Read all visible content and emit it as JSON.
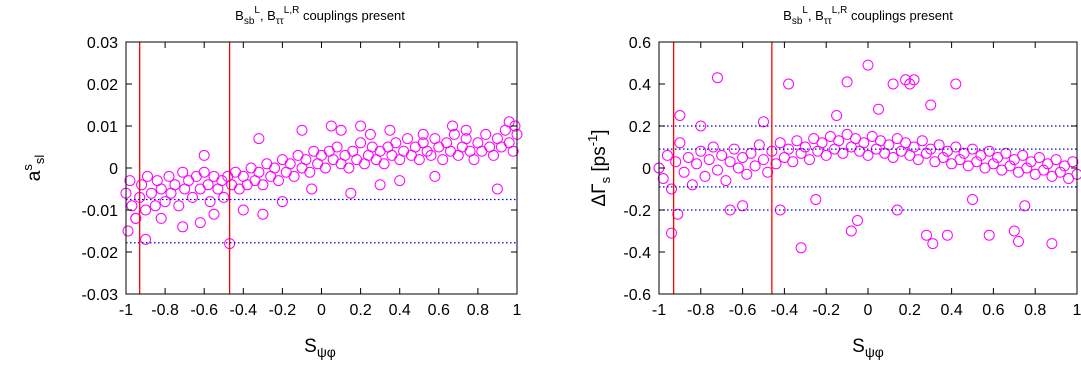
{
  "chart_data": [
    {
      "type": "scatter",
      "title": {
        "main": "B",
        "sub1": "sb",
        "sup1": "L",
        "mid": ", B",
        "sub2": "ττ",
        "sup2": "L,R",
        "tail": " couplings present"
      },
      "xlabel": {
        "main": "S",
        "sub": "ψφ"
      },
      "ylabel": {
        "main": "a",
        "sup": "s",
        "sub": "sl"
      },
      "xlim": [
        -1,
        1
      ],
      "ylim": [
        -0.03,
        0.03
      ],
      "x_ticks": [
        "-1",
        "-0.8",
        "-0.6",
        "-0.4",
        "-0.2",
        "0",
        "0.2",
        "0.4",
        "0.6",
        "0.8",
        "1"
      ],
      "x_tick_values": [
        -1,
        -0.8,
        -0.6,
        -0.4,
        -0.2,
        0,
        0.2,
        0.4,
        0.6,
        0.8,
        1
      ],
      "y_ticks": [
        "-0.03",
        "-0.02",
        "-0.01",
        "0",
        "0.01",
        "0.02",
        "0.03"
      ],
      "y_tick_values": [
        -0.03,
        -0.02,
        -0.01,
        0,
        0.01,
        0.02,
        0.03
      ],
      "vertical_lines_x": [
        -0.93,
        -0.47
      ],
      "horizontal_dotted_y": [
        -0.0075,
        -0.0178
      ],
      "marker_color": "#ff00ff",
      "vline_color": "#ff0000",
      "hline_color": "#0000cc",
      "points": [
        [
          -1.0,
          -0.006
        ],
        [
          -0.98,
          -0.003
        ],
        [
          -0.97,
          -0.009
        ],
        [
          -0.95,
          -0.012
        ],
        [
          -0.93,
          -0.007
        ],
        [
          -0.92,
          -0.004
        ],
        [
          -0.9,
          -0.01
        ],
        [
          -0.89,
          -0.002
        ],
        [
          -0.87,
          -0.006
        ],
        [
          -0.85,
          -0.009
        ],
        [
          -0.84,
          -0.003
        ],
        [
          -0.82,
          -0.005
        ],
        [
          -0.8,
          -0.008
        ],
        [
          -0.78,
          -0.002
        ],
        [
          -0.77,
          -0.006
        ],
        [
          -0.75,
          -0.004
        ],
        [
          -0.73,
          -0.009
        ],
        [
          -0.71,
          -0.001
        ],
        [
          -0.7,
          -0.005
        ],
        [
          -0.68,
          -0.003
        ],
        [
          -0.66,
          -0.007
        ],
        [
          -0.64,
          -0.002
        ],
        [
          -0.62,
          -0.005
        ],
        [
          -0.6,
          -0.001
        ],
        [
          -0.58,
          -0.004
        ],
        [
          -0.57,
          -0.008
        ],
        [
          -0.55,
          -0.002
        ],
        [
          -0.53,
          -0.005
        ],
        [
          -0.51,
          -0.003
        ],
        [
          -0.5,
          -0.007
        ],
        [
          -0.48,
          -0.002
        ],
        [
          -0.46,
          -0.004
        ],
        [
          -0.44,
          -0.001
        ],
        [
          -0.42,
          -0.005
        ],
        [
          -0.4,
          -0.002
        ],
        [
          -0.38,
          -0.004
        ],
        [
          -0.36,
          0.0
        ],
        [
          -0.34,
          -0.003
        ],
        [
          -0.32,
          -0.001
        ],
        [
          -0.3,
          -0.004
        ],
        [
          -0.28,
          0.001
        ],
        [
          -0.26,
          -0.002
        ],
        [
          -0.24,
          0.0
        ],
        [
          -0.22,
          -0.003
        ],
        [
          -0.2,
          0.002
        ],
        [
          -0.18,
          -0.001
        ],
        [
          -0.16,
          0.001
        ],
        [
          -0.14,
          -0.002
        ],
        [
          -0.12,
          0.003
        ],
        [
          -0.1,
          0.0
        ],
        [
          -0.08,
          0.002
        ],
        [
          -0.06,
          -0.001
        ],
        [
          -0.04,
          0.004
        ],
        [
          -0.02,
          0.001
        ],
        [
          0.0,
          0.003
        ],
        [
          0.02,
          0.0
        ],
        [
          0.04,
          0.004
        ],
        [
          0.06,
          0.002
        ],
        [
          0.08,
          0.005
        ],
        [
          0.1,
          0.001
        ],
        [
          0.12,
          0.003
        ],
        [
          0.14,
          0.0
        ],
        [
          0.16,
          0.004
        ],
        [
          0.18,
          0.002
        ],
        [
          0.2,
          0.006
        ],
        [
          0.22,
          0.001
        ],
        [
          0.24,
          0.003
        ],
        [
          0.26,
          0.005
        ],
        [
          0.28,
          0.002
        ],
        [
          0.3,
          0.004
        ],
        [
          0.32,
          0.001
        ],
        [
          0.34,
          0.005
        ],
        [
          0.36,
          0.003
        ],
        [
          0.38,
          0.006
        ],
        [
          0.4,
          0.002
        ],
        [
          0.42,
          0.004
        ],
        [
          0.44,
          0.007
        ],
        [
          0.46,
          0.003
        ],
        [
          0.48,
          0.005
        ],
        [
          0.5,
          0.002
        ],
        [
          0.52,
          0.006
        ],
        [
          0.54,
          0.004
        ],
        [
          0.56,
          0.003
        ],
        [
          0.58,
          0.007
        ],
        [
          0.6,
          0.005
        ],
        [
          0.62,
          0.002
        ],
        [
          0.64,
          0.006
        ],
        [
          0.66,
          0.004
        ],
        [
          0.68,
          0.008
        ],
        [
          0.7,
          0.003
        ],
        [
          0.72,
          0.005
        ],
        [
          0.74,
          0.007
        ],
        [
          0.76,
          0.004
        ],
        [
          0.78,
          0.002
        ],
        [
          0.8,
          0.006
        ],
        [
          0.82,
          0.004
        ],
        [
          0.84,
          0.008
        ],
        [
          0.86,
          0.005
        ],
        [
          0.88,
          0.003
        ],
        [
          0.9,
          0.007
        ],
        [
          0.92,
          0.005
        ],
        [
          0.94,
          0.009
        ],
        [
          0.96,
          0.006
        ],
        [
          0.98,
          0.004
        ],
        [
          1.0,
          0.008
        ],
        [
          -0.99,
          -0.015
        ],
        [
          -0.9,
          -0.017
        ],
        [
          -0.71,
          -0.014
        ],
        [
          -0.47,
          -0.018
        ],
        [
          -0.62,
          -0.013
        ],
        [
          -0.3,
          -0.011
        ],
        [
          -0.95,
          -0.012
        ],
        [
          0.9,
          -0.005
        ],
        [
          -0.1,
          0.009
        ],
        [
          0.05,
          0.01
        ],
        [
          0.1,
          0.009
        ],
        [
          0.2,
          0.01
        ],
        [
          0.52,
          0.008
        ],
        [
          0.67,
          0.01
        ],
        [
          0.74,
          0.009
        ],
        [
          0.96,
          0.011
        ],
        [
          0.99,
          0.01
        ],
        [
          -0.32,
          0.007
        ],
        [
          -0.6,
          0.003
        ],
        [
          0.15,
          -0.006
        ],
        [
          0.3,
          -0.004
        ],
        [
          -0.2,
          -0.008
        ],
        [
          -0.55,
          -0.011
        ],
        [
          -0.4,
          -0.01
        ],
        [
          -0.82,
          -0.012
        ],
        [
          0.4,
          -0.003
        ],
        [
          0.58,
          -0.002
        ],
        [
          -0.05,
          -0.005
        ],
        [
          0.35,
          0.009
        ],
        [
          0.25,
          0.008
        ]
      ]
    },
    {
      "type": "scatter",
      "title": {
        "main": "B",
        "sub1": "sb",
        "sup1": "L",
        "mid": ", B",
        "sub2": "ττ",
        "sup2": "L,R",
        "tail": " couplings present"
      },
      "xlabel": {
        "main": "S",
        "sub": "ψφ"
      },
      "ylabel": {
        "main": "ΔΓ",
        "sub": "s",
        "unit_open": " [ps",
        "unit_sup": "-1",
        "unit_close": "]"
      },
      "xlim": [
        -1,
        1
      ],
      "ylim": [
        -0.6,
        0.6
      ],
      "x_ticks": [
        "-1",
        "-0.8",
        "-0.6",
        "-0.4",
        "-0.2",
        "0",
        "0.2",
        "0.4",
        "0.6",
        "0.8",
        "1"
      ],
      "x_tick_values": [
        -1,
        -0.8,
        -0.6,
        -0.4,
        -0.2,
        0,
        0.2,
        0.4,
        0.6,
        0.8,
        1
      ],
      "y_ticks": [
        "-0.6",
        "-0.4",
        "-0.2",
        "0",
        "0.2",
        "0.4",
        "0.6"
      ],
      "y_tick_values": [
        -0.6,
        -0.4,
        -0.2,
        0,
        0.2,
        0.4,
        0.6
      ],
      "vertical_lines_x": [
        -0.93,
        -0.46
      ],
      "horizontal_dotted_y": [
        0.2,
        0.09,
        -0.09,
        -0.2
      ],
      "marker_color": "#ff00ff",
      "vline_color": "#ff0000",
      "hline_color": "#0000cc",
      "points": [
        [
          -1.0,
          0.0
        ],
        [
          -0.98,
          -0.05
        ],
        [
          -0.96,
          0.06
        ],
        [
          -0.94,
          -0.1
        ],
        [
          -0.92,
          0.03
        ],
        [
          -0.9,
          0.12
        ],
        [
          -0.88,
          -0.02
        ],
        [
          -0.86,
          0.05
        ],
        [
          -0.84,
          -0.08
        ],
        [
          -0.82,
          0.02
        ],
        [
          -0.8,
          0.08
        ],
        [
          -0.78,
          -0.04
        ],
        [
          -0.76,
          0.04
        ],
        [
          -0.74,
          0.1
        ],
        [
          -0.72,
          -0.01
        ],
        [
          -0.7,
          0.06
        ],
        [
          -0.68,
          -0.06
        ],
        [
          -0.66,
          0.03
        ],
        [
          -0.64,
          0.09
        ],
        [
          -0.62,
          0.0
        ],
        [
          -0.6,
          0.05
        ],
        [
          -0.58,
          -0.03
        ],
        [
          -0.56,
          0.07
        ],
        [
          -0.54,
          0.01
        ],
        [
          -0.52,
          0.11
        ],
        [
          -0.5,
          0.04
        ],
        [
          -0.48,
          -0.02
        ],
        [
          -0.46,
          0.08
        ],
        [
          -0.44,
          0.02
        ],
        [
          -0.42,
          0.12
        ],
        [
          -0.4,
          0.05
        ],
        [
          -0.38,
          0.09
        ],
        [
          -0.36,
          0.03
        ],
        [
          -0.34,
          0.13
        ],
        [
          -0.32,
          0.07
        ],
        [
          -0.3,
          0.1
        ],
        [
          -0.28,
          0.04
        ],
        [
          -0.26,
          0.14
        ],
        [
          -0.24,
          0.08
        ],
        [
          -0.22,
          0.12
        ],
        [
          -0.2,
          0.06
        ],
        [
          -0.18,
          0.15
        ],
        [
          -0.16,
          0.09
        ],
        [
          -0.14,
          0.13
        ],
        [
          -0.12,
          0.07
        ],
        [
          -0.1,
          0.16
        ],
        [
          -0.08,
          0.1
        ],
        [
          -0.06,
          0.14
        ],
        [
          -0.04,
          0.08
        ],
        [
          -0.02,
          0.12
        ],
        [
          0.0,
          0.06
        ],
        [
          0.02,
          0.15
        ],
        [
          0.04,
          0.09
        ],
        [
          0.06,
          0.13
        ],
        [
          0.08,
          0.07
        ],
        [
          0.1,
          0.11
        ],
        [
          0.12,
          0.05
        ],
        [
          0.14,
          0.14
        ],
        [
          0.16,
          0.08
        ],
        [
          0.18,
          0.12
        ],
        [
          0.2,
          0.06
        ],
        [
          0.22,
          0.1
        ],
        [
          0.24,
          0.04
        ],
        [
          0.26,
          0.13
        ],
        [
          0.28,
          0.07
        ],
        [
          0.3,
          0.09
        ],
        [
          0.32,
          0.03
        ],
        [
          0.34,
          0.11
        ],
        [
          0.36,
          0.05
        ],
        [
          0.38,
          0.08
        ],
        [
          0.4,
          0.02
        ],
        [
          0.42,
          0.1
        ],
        [
          0.44,
          0.04
        ],
        [
          0.46,
          0.07
        ],
        [
          0.48,
          0.01
        ],
        [
          0.5,
          0.09
        ],
        [
          0.52,
          0.03
        ],
        [
          0.54,
          0.06
        ],
        [
          0.56,
          0.0
        ],
        [
          0.58,
          0.08
        ],
        [
          0.6,
          0.02
        ],
        [
          0.62,
          0.05
        ],
        [
          0.64,
          -0.01
        ],
        [
          0.66,
          0.07
        ],
        [
          0.68,
          0.01
        ],
        [
          0.7,
          0.04
        ],
        [
          0.72,
          -0.02
        ],
        [
          0.74,
          0.06
        ],
        [
          0.76,
          0.0
        ],
        [
          0.78,
          0.03
        ],
        [
          0.8,
          -0.03
        ],
        [
          0.82,
          0.05
        ],
        [
          0.84,
          -0.01
        ],
        [
          0.86,
          0.02
        ],
        [
          0.88,
          -0.04
        ],
        [
          0.9,
          0.04
        ],
        [
          0.92,
          -0.02
        ],
        [
          0.94,
          0.01
        ],
        [
          0.96,
          -0.05
        ],
        [
          0.98,
          0.03
        ],
        [
          1.0,
          -0.03
        ],
        [
          -0.72,
          0.43
        ],
        [
          -0.94,
          -0.31
        ],
        [
          -0.9,
          0.25
        ],
        [
          -0.91,
          -0.22
        ],
        [
          -0.32,
          -0.38
        ],
        [
          -0.08,
          -0.3
        ],
        [
          0.0,
          0.49
        ],
        [
          0.12,
          0.4
        ],
        [
          0.18,
          0.42
        ],
        [
          0.2,
          0.4
        ],
        [
          0.22,
          0.42
        ],
        [
          0.28,
          -0.32
        ],
        [
          0.38,
          -0.32
        ],
        [
          0.42,
          0.4
        ],
        [
          0.72,
          -0.35
        ],
        [
          0.88,
          -0.36
        ],
        [
          0.58,
          -0.32
        ],
        [
          0.31,
          -0.36
        ],
        [
          -0.1,
          0.41
        ],
        [
          -0.05,
          -0.25
        ],
        [
          0.05,
          0.28
        ],
        [
          -0.42,
          -0.2
        ],
        [
          0.14,
          -0.2
        ],
        [
          0.7,
          -0.3
        ],
        [
          -0.66,
          -0.2
        ],
        [
          -0.6,
          -0.18
        ],
        [
          -0.25,
          -0.15
        ],
        [
          0.5,
          -0.15
        ],
        [
          -0.8,
          0.2
        ],
        [
          0.75,
          -0.18
        ],
        [
          -0.5,
          0.22
        ],
        [
          0.3,
          0.3
        ],
        [
          -0.15,
          0.25
        ],
        [
          -0.38,
          0.4
        ]
      ]
    }
  ]
}
